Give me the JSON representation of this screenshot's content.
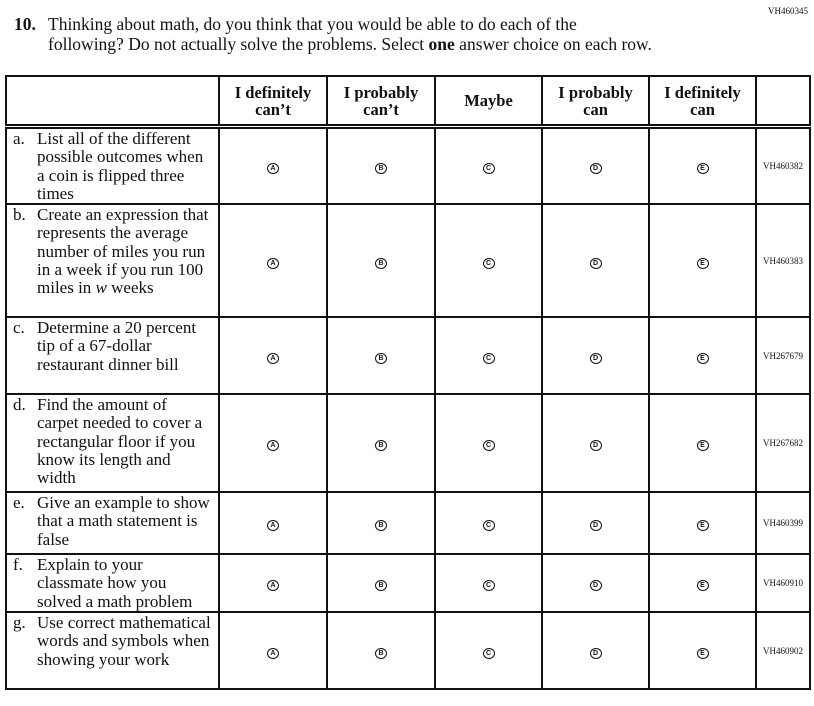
{
  "form_code": "VH460345",
  "question": {
    "number": "10.",
    "line1": "Thinking about math, do you think that you would be able to do each of the",
    "line2_pre": "following? Do not actually solve the problems. Select ",
    "line2_bold": "one",
    "line2_post": " answer choice on each row."
  },
  "columns": [
    {
      "l1": "I definitely",
      "l2": "can’t"
    },
    {
      "l1": "I probably",
      "l2": "can’t"
    },
    {
      "l1": "Maybe",
      "l2": ""
    },
    {
      "l1": "I probably",
      "l2": "can"
    },
    {
      "l1": "I definitely",
      "l2": "can"
    }
  ],
  "options": [
    "A",
    "B",
    "C",
    "D",
    "E"
  ],
  "rows": [
    {
      "letter": "a.",
      "text": "List all of the different possible outcomes when a coin is flipped three times",
      "code": "VH460382"
    },
    {
      "letter": "b.",
      "text": "Create an expression that represents the average number of miles you run in a week if you run 100 miles in ",
      "italic": "w",
      "text_end": " weeks",
      "code": "VH460383"
    },
    {
      "letter": "c.",
      "text": "Determine a 20 percent tip of a 67-dollar restaurant dinner bill",
      "code": "VH267679"
    },
    {
      "letter": "d.",
      "text": "Find the amount of carpet needed to cover a rectangular floor if you know its length and width",
      "code": "VH267682"
    },
    {
      "letter": "e.",
      "text": "Give an example to show that a math statement is false",
      "code": "VH460399"
    },
    {
      "letter": "f.",
      "text": "Explain to your classmate how you solved a math problem",
      "code": "VH460910"
    },
    {
      "letter": "g.",
      "text": "Use correct mathematical words and symbols when showing your work",
      "code": "VH460902"
    }
  ]
}
